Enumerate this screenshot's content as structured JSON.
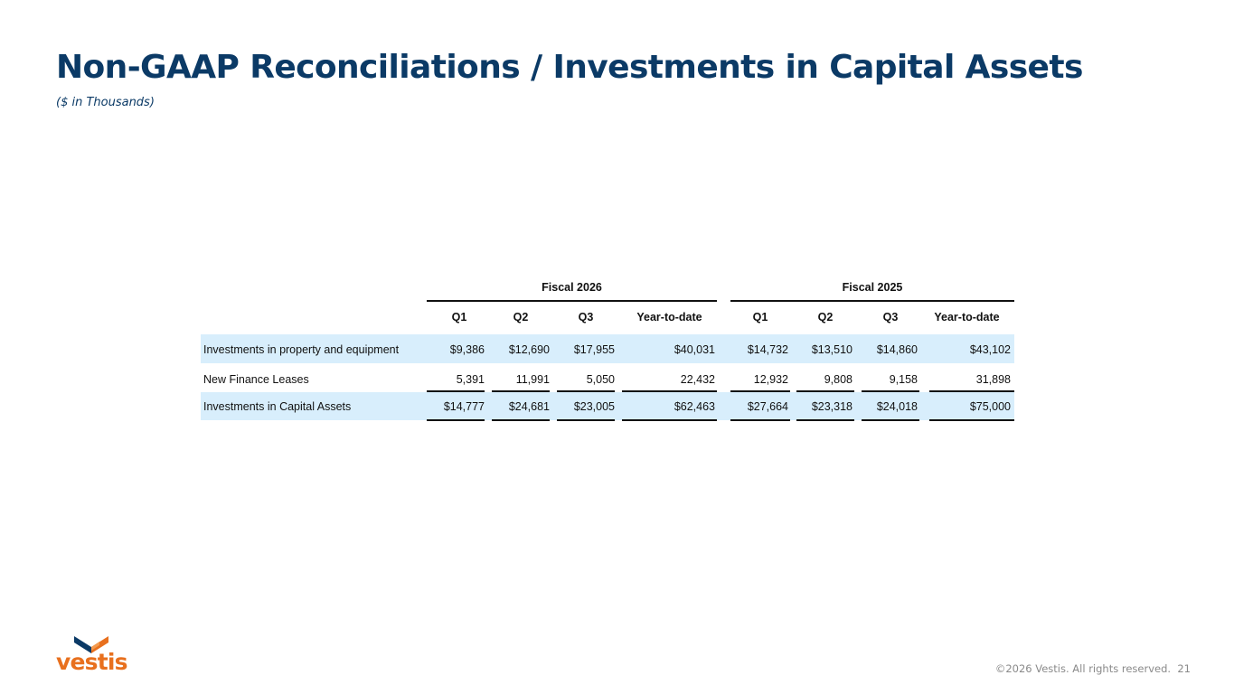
{
  "title": "Non-GAAP Reconciliations / Investments in Capital Assets",
  "subtitle": "($ in Thousands)",
  "table": {
    "groups": [
      "Fiscal 2026",
      "Fiscal 2025"
    ],
    "columns": [
      "Q1",
      "Q2",
      "Q3",
      "Year-to-date",
      "Q1",
      "Q2",
      "Q3",
      "Year-to-date"
    ],
    "rows": [
      {
        "label": "Investments in property and equipment",
        "values": [
          "$9,386",
          "$12,690",
          "$17,955",
          "$40,031",
          "$14,732",
          "$13,510",
          "$14,860",
          "$43,102"
        ]
      },
      {
        "label": "New Finance Leases",
        "values": [
          "5,391",
          "11,991",
          "5,050",
          "22,432",
          "12,932",
          "9,808",
          "9,158",
          "31,898"
        ]
      },
      {
        "label": "Investments in Capital Assets",
        "values": [
          "$14,777",
          "$24,681",
          "$23,005",
          "$62,463",
          "$27,664",
          "$23,318",
          "$24,018",
          "$75,000"
        ]
      }
    ]
  },
  "logo": {
    "text": "vestis",
    "icon": "vestis-chevron-icon",
    "colors": {
      "dark": "#0b3a66",
      "orange": "#e8701e"
    }
  },
  "footer": {
    "copyright": "©2026 Vestis. All rights reserved.",
    "page_number": "21"
  },
  "colors": {
    "title": "#0b3a66",
    "row_highlight": "#d8eefc"
  }
}
